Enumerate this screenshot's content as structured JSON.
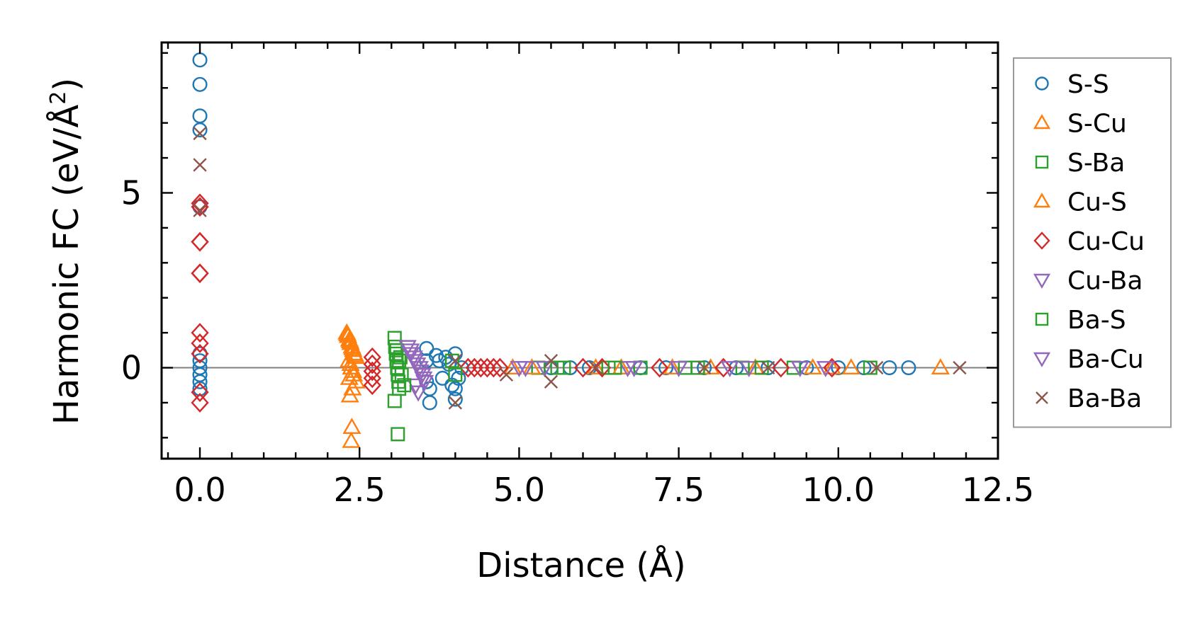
{
  "chart_data": {
    "type": "scatter",
    "title": "",
    "xlabel": "Distance (Å)",
    "ylabel": "Harmonic FC (eV/Å",
    "ylabel_sup": "2",
    "ylabel_end": ")",
    "xlim": [
      -0.6,
      12.5
    ],
    "ylim": [
      -2.6,
      9.3
    ],
    "xticks": [
      0.0,
      2.5,
      5.0,
      7.5,
      10.0,
      12.5
    ],
    "xtick_labels": [
      "0.0",
      "2.5",
      "5.0",
      "7.5",
      "10.0",
      "12.5"
    ],
    "yticks": [
      0,
      5
    ],
    "ytick_labels": [
      "0",
      "5"
    ],
    "grid": false,
    "zero_line": 0,
    "legend_position": "right",
    "series": [
      {
        "name": "S-S",
        "marker": "circle",
        "color": "#1f77b4",
        "x": [
          0,
          0,
          0,
          0,
          0,
          0,
          0,
          0,
          0,
          0,
          0,
          3.55,
          3.55,
          3.55,
          3.6,
          3.6,
          3.7,
          3.75,
          3.8,
          3.85,
          3.9,
          3.95,
          4.0,
          4.0,
          4.0,
          4.05,
          4.1,
          5.5,
          5.8,
          6.1,
          6.9,
          7.3,
          7.9,
          8.4,
          8.9,
          9.5,
          10.0,
          10.4,
          10.8,
          11.1
        ],
        "y": [
          8.8,
          8.1,
          7.2,
          6.8,
          4.6,
          0.4,
          0.2,
          0.0,
          -0.2,
          -0.4,
          -0.6,
          0.55,
          0.2,
          -0.4,
          -0.6,
          -1.0,
          0.35,
          0.2,
          -0.3,
          0.3,
          0.1,
          -0.5,
          0.4,
          -0.9,
          -0.6,
          -0.3,
          0.0,
          0.0,
          0.0,
          0.0,
          0.0,
          0.0,
          0.0,
          0.0,
          0.0,
          0.0,
          0.0,
          0.0,
          0.0,
          0.0
        ]
      },
      {
        "name": "S-Cu",
        "marker": "triangle-up",
        "color": "#ff7f0e",
        "x": [
          2.3,
          2.32,
          2.34,
          2.36,
          2.38,
          2.4,
          2.42,
          2.44,
          2.33,
          2.37,
          2.41,
          2.45,
          2.39,
          2.35,
          4.9,
          6.2,
          7.4,
          8.7,
          9.6,
          10.2,
          11.6
        ],
        "y": [
          1.0,
          0.9,
          0.8,
          0.7,
          0.6,
          0.5,
          0.4,
          0.3,
          0.2,
          0.0,
          -0.2,
          -0.4,
          -0.6,
          -0.8,
          0.0,
          0.0,
          0.0,
          0.0,
          0.0,
          0.0,
          0.0
        ]
      },
      {
        "name": "S-Ba",
        "marker": "square",
        "color": "#2ca02c",
        "x": [
          3.05,
          3.06,
          3.07,
          3.08,
          3.09,
          3.1,
          3.11,
          3.12,
          3.05,
          3.1,
          3.14,
          5.3,
          5.7,
          6.4,
          6.9,
          7.6,
          8.5,
          9.3,
          10.5
        ],
        "y": [
          0.85,
          0.6,
          0.4,
          0.2,
          0.0,
          -0.2,
          -0.4,
          -0.6,
          -0.95,
          -1.9,
          0.3,
          0.0,
          0.0,
          0.0,
          0.0,
          0.0,
          0.0,
          0.0,
          0.0
        ]
      },
      {
        "name": "Cu-S",
        "marker": "triangle-up",
        "color": "#ff7f0e",
        "x": [
          2.31,
          2.35,
          2.39,
          2.43,
          2.36,
          2.4,
          2.34,
          2.38,
          2.37,
          5.2,
          6.6,
          8.0,
          9.9
        ],
        "y": [
          0.95,
          0.75,
          0.55,
          0.35,
          0.1,
          -0.1,
          -0.3,
          -1.7,
          -2.1,
          0.0,
          0.0,
          0.0,
          0.0
        ]
      },
      {
        "name": "Cu-Cu",
        "marker": "diamond",
        "color": "#d62728",
        "x": [
          0,
          0,
          0,
          0,
          0,
          0,
          0,
          0,
          0,
          0,
          0,
          2.7,
          2.7,
          2.7,
          2.7,
          2.7,
          4.2,
          4.3,
          4.4,
          4.5,
          4.6,
          4.7,
          6.0,
          6.3,
          7.2,
          8.2,
          9.1,
          9.9
        ],
        "y": [
          4.7,
          4.6,
          3.6,
          3.6,
          2.7,
          2.7,
          1.0,
          0.7,
          0.4,
          -0.7,
          -1.0,
          0.3,
          0.1,
          -0.1,
          -0.3,
          -0.5,
          0.0,
          0.0,
          0.0,
          0.0,
          0.0,
          0.0,
          0.0,
          0.0,
          0.0,
          0.0,
          0.0,
          0.0
        ]
      },
      {
        "name": "Cu-Ba",
        "marker": "triangle-down",
        "color": "#9467bd",
        "x": [
          3.3,
          3.35,
          3.4,
          3.45,
          3.5,
          3.38,
          3.42,
          5.1,
          5.4,
          6.7,
          7.5,
          8.6,
          9.4
        ],
        "y": [
          0.5,
          0.3,
          0.1,
          -0.1,
          -0.3,
          -0.5,
          -0.7,
          0.0,
          0.0,
          0.0,
          0.0,
          0.0,
          0.0
        ]
      },
      {
        "name": "Ba-S",
        "marker": "square",
        "color": "#2ca02c",
        "x": [
          3.08,
          3.12,
          3.16,
          3.2,
          3.95,
          4.0,
          5.6,
          6.5,
          7.8,
          8.8
        ],
        "y": [
          0.5,
          0.2,
          -0.2,
          -0.5,
          0.2,
          -0.2,
          0.0,
          0.0,
          0.0,
          0.0
        ]
      },
      {
        "name": "Ba-Cu",
        "marker": "triangle-down",
        "color": "#9467bd",
        "x": [
          3.25,
          3.3,
          3.36,
          3.44,
          3.48,
          3.52,
          5.0,
          6.8,
          8.3,
          9.8
        ],
        "y": [
          0.6,
          0.4,
          0.2,
          0.0,
          -0.2,
          -0.4,
          0.0,
          0.0,
          0.0,
          0.0
        ]
      },
      {
        "name": "Ba-Ba",
        "marker": "x",
        "color": "#8c564b",
        "x": [
          0,
          0,
          0,
          4.0,
          4.0,
          4.8,
          5.5,
          5.5,
          6.2,
          7.9,
          8.9,
          10.6,
          11.9
        ],
        "y": [
          6.7,
          5.8,
          4.5,
          0.2,
          -1.0,
          -0.2,
          0.2,
          -0.4,
          0.0,
          0.0,
          0.0,
          0.0,
          0.0
        ]
      }
    ]
  }
}
